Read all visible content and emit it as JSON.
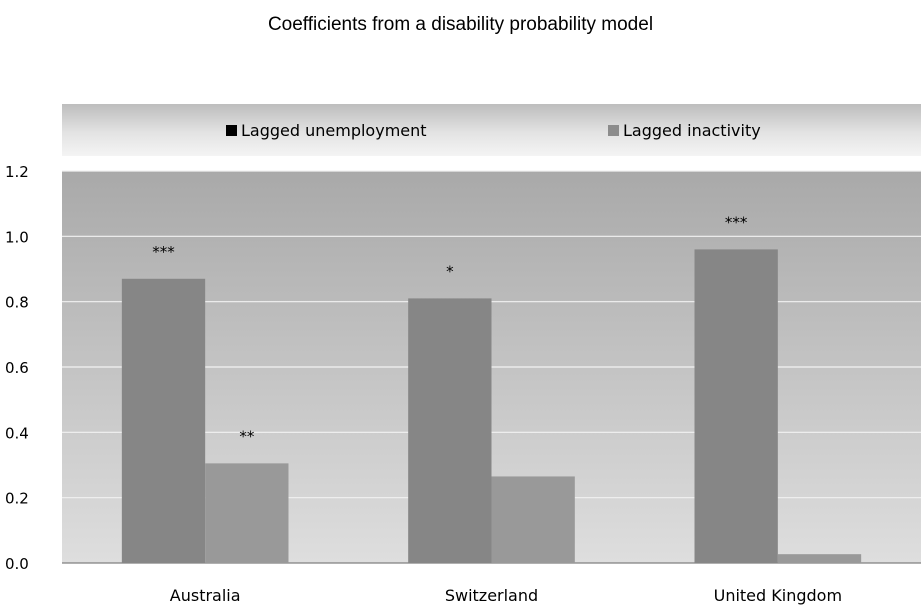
{
  "chart_data": {
    "type": "bar",
    "title": "Coefficients from a disability probability model",
    "categories": [
      "Australia",
      "Switzerland",
      "United Kingdom"
    ],
    "series": [
      {
        "name": "Lagged unemployment",
        "values": [
          0.87,
          0.81,
          0.96
        ],
        "significance": [
          "***",
          "*",
          "***"
        ],
        "color": "#868686",
        "legend_color": "#000000"
      },
      {
        "name": "Lagged inactivity",
        "values": [
          0.305,
          0.265,
          0.027
        ],
        "significance": [
          "**",
          "",
          ""
        ],
        "color": "#999999",
        "legend_color": "#8c8c8c"
      }
    ],
    "y_ticks": [
      "0.0",
      "0.2",
      "0.4",
      "0.6",
      "0.8",
      "1.0",
      "1.2"
    ],
    "ylim": [
      0,
      1.2
    ],
    "xlabel": "",
    "ylabel": "",
    "grid": true,
    "legend_position": "top",
    "plot_background": [
      "#dedede",
      "#a9a9a9"
    ]
  }
}
